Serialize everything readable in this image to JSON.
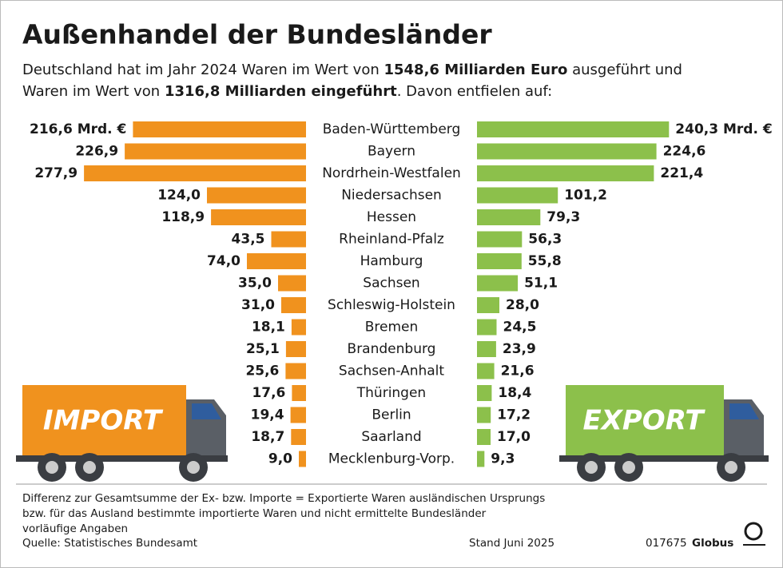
{
  "chart_data": {
    "type": "diverging-bar",
    "title": "Außenhandel der Bundesländer",
    "subtitle": [
      [
        {
          "text": "Deutschland hat im Jahr 2024 Waren im Wert von ",
          "bold": false
        },
        {
          "text": "1548,6 Milliarden Euro",
          "bold": true
        },
        {
          "text": " ausgeführt und",
          "bold": false
        }
      ],
      [
        {
          "text": "Waren im Wert von ",
          "bold": false
        },
        {
          "text": "1316,8 Milliarden eingeführt",
          "bold": true
        },
        {
          "text": ". Davon entfielen auf:",
          "bold": false
        }
      ]
    ],
    "categories": [
      "Baden-Württemberg",
      "Bayern",
      "Nordrhein-Westfalen",
      "Niedersachsen",
      "Hessen",
      "Rheinland-Pfalz",
      "Hamburg",
      "Sachsen",
      "Schleswig-Holstein",
      "Bremen",
      "Brandenburg",
      "Sachsen-Anhalt",
      "Thüringen",
      "Berlin",
      "Saarland",
      "Mecklenburg-Vorp."
    ],
    "series": [
      {
        "name": "IMPORT",
        "color": "#f0921e",
        "side": "left",
        "values": [
          216.6,
          226.9,
          277.9,
          124.0,
          118.9,
          43.5,
          74.0,
          35.0,
          31.0,
          18.1,
          25.1,
          25.6,
          17.6,
          19.4,
          18.7,
          9.0
        ],
        "value_labels": [
          "216,6 Mrd. €",
          "226,9",
          "277,9",
          "124,0",
          "118,9",
          "43,5",
          "74,0",
          "35,0",
          "31,0",
          "18,1",
          "25,1",
          "25,6",
          "17,6",
          "19,4",
          "18,7",
          "9,0"
        ]
      },
      {
        "name": "EXPORT",
        "color": "#8cc04b",
        "side": "right",
        "values": [
          240.3,
          224.6,
          221.4,
          101.2,
          79.3,
          56.3,
          55.8,
          51.1,
          28.0,
          24.5,
          23.9,
          21.6,
          18.4,
          17.2,
          17.0,
          9.3
        ],
        "value_labels": [
          "240,3 Mrd. €",
          "224,6",
          "221,4",
          "101,2",
          "79,3",
          "56,3",
          "55,8",
          "51,1",
          "28,0",
          "24,5",
          "23,9",
          "21,6",
          "18,4",
          "17,2",
          "17,0",
          "9,3"
        ]
      }
    ],
    "notes": [
      "Differenz zur Gesamtsumme der Ex- bzw. Importe = Exportierte Waren ausländischen Ursprungs",
      "bzw. für das Ausland bestimmte importierte Waren und nicht ermittelte Bundesländer",
      "vorläufige Angaben"
    ],
    "source": "Quelle: Statistisches Bundesamt",
    "date": "Stand Juni 2025",
    "code": "017675",
    "brand": "Globus"
  }
}
